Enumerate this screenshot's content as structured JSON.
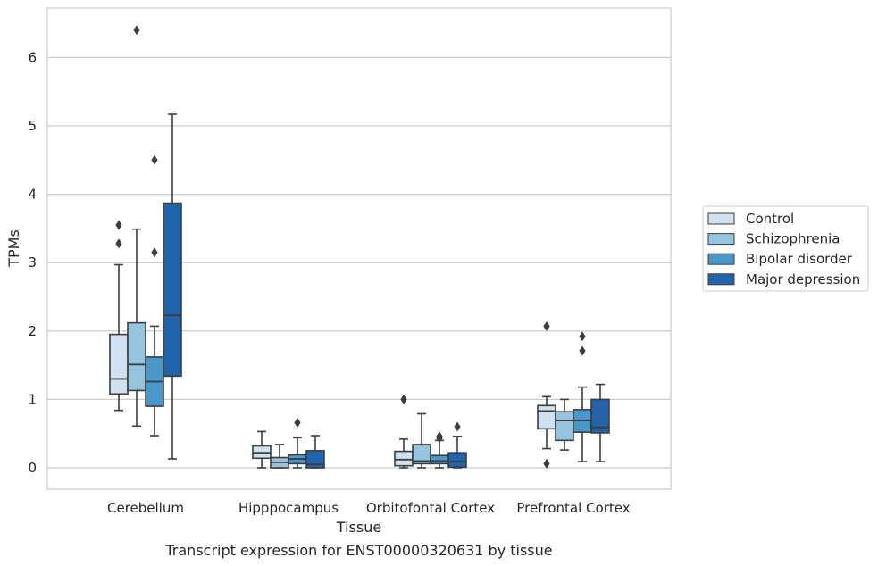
{
  "chart_data": {
    "type": "box",
    "title": "",
    "caption": "Transcript expression for ENST00000320631 by tissue",
    "xlabel": "Tissue",
    "ylabel": "TPMs",
    "ylim": [
      -0.31,
      6.72
    ],
    "yticks": [
      0,
      1,
      2,
      3,
      4,
      5,
      6
    ],
    "grid": "horizontal",
    "legend_position": "right",
    "categories": [
      "Cerebellum",
      "Hipppocampus",
      "Orbitofontal Cortex",
      "Prefrontal Cortex"
    ],
    "series": [
      {
        "name": "Control",
        "color": "#d0e1f2",
        "boxes": [
          {
            "whisker_low": 0.84,
            "q1": 1.08,
            "median": 1.3,
            "q3": 1.95,
            "whisker_high": 2.97,
            "outliers": [
              3.28,
              3.55
            ]
          },
          {
            "whisker_low": 0.0,
            "q1": 0.14,
            "median": 0.22,
            "q3": 0.32,
            "whisker_high": 0.53,
            "outliers": []
          },
          {
            "whisker_low": 0.0,
            "q1": 0.03,
            "median": 0.12,
            "q3": 0.24,
            "whisker_high": 0.42,
            "outliers": [
              1.0
            ]
          },
          {
            "whisker_low": 0.28,
            "q1": 0.57,
            "median": 0.83,
            "q3": 0.91,
            "whisker_high": 1.04,
            "outliers": [
              0.06,
              2.07
            ]
          }
        ]
      },
      {
        "name": "Schizophrenia",
        "color": "#94c4df",
        "boxes": [
          {
            "whisker_low": 0.61,
            "q1": 1.13,
            "median": 1.51,
            "q3": 2.12,
            "whisker_high": 3.49,
            "outliers": [
              6.4
            ]
          },
          {
            "whisker_low": 0.0,
            "q1": 0.0,
            "median": 0.08,
            "q3": 0.15,
            "whisker_high": 0.34,
            "outliers": []
          },
          {
            "whisker_low": 0.0,
            "q1": 0.06,
            "median": 0.1,
            "q3": 0.34,
            "whisker_high": 0.79,
            "outliers": []
          },
          {
            "whisker_low": 0.26,
            "q1": 0.4,
            "median": 0.69,
            "q3": 0.82,
            "whisker_high": 1.0,
            "outliers": []
          }
        ]
      },
      {
        "name": "Bipolar disorder",
        "color": "#4a98c9",
        "boxes": [
          {
            "whisker_low": 0.47,
            "q1": 0.9,
            "median": 1.26,
            "q3": 1.62,
            "whisker_high": 2.07,
            "outliers": [
              3.15,
              4.5
            ]
          },
          {
            "whisker_low": 0.0,
            "q1": 0.06,
            "median": 0.13,
            "q3": 0.19,
            "whisker_high": 0.44,
            "outliers": [
              0.66
            ]
          },
          {
            "whisker_low": 0.0,
            "q1": 0.06,
            "median": 0.1,
            "q3": 0.18,
            "whisker_high": 0.4,
            "outliers": [
              0.43,
              0.46
            ]
          },
          {
            "whisker_low": 0.09,
            "q1": 0.52,
            "median": 0.69,
            "q3": 0.85,
            "whisker_high": 1.18,
            "outliers": [
              1.71,
              1.92
            ]
          }
        ]
      },
      {
        "name": "Major depression",
        "color": "#2164ab",
        "boxes": [
          {
            "whisker_low": 0.13,
            "q1": 1.34,
            "median": 2.23,
            "q3": 3.87,
            "whisker_high": 5.17,
            "outliers": []
          },
          {
            "whisker_low": 0.0,
            "q1": 0.0,
            "median": 0.05,
            "q3": 0.25,
            "whisker_high": 0.47,
            "outliers": []
          },
          {
            "whisker_low": 0.0,
            "q1": 0.01,
            "median": 0.09,
            "q3": 0.22,
            "whisker_high": 0.46,
            "outliers": [
              0.6
            ]
          },
          {
            "whisker_low": 0.09,
            "q1": 0.51,
            "median": 0.59,
            "q3": 1.0,
            "whisker_high": 1.22,
            "outliers": []
          }
        ]
      }
    ]
  },
  "colors": {
    "grid": "#cccccc",
    "frame": "#cccccc",
    "box_edge": "#3d3d3d",
    "text": "#262626"
  }
}
